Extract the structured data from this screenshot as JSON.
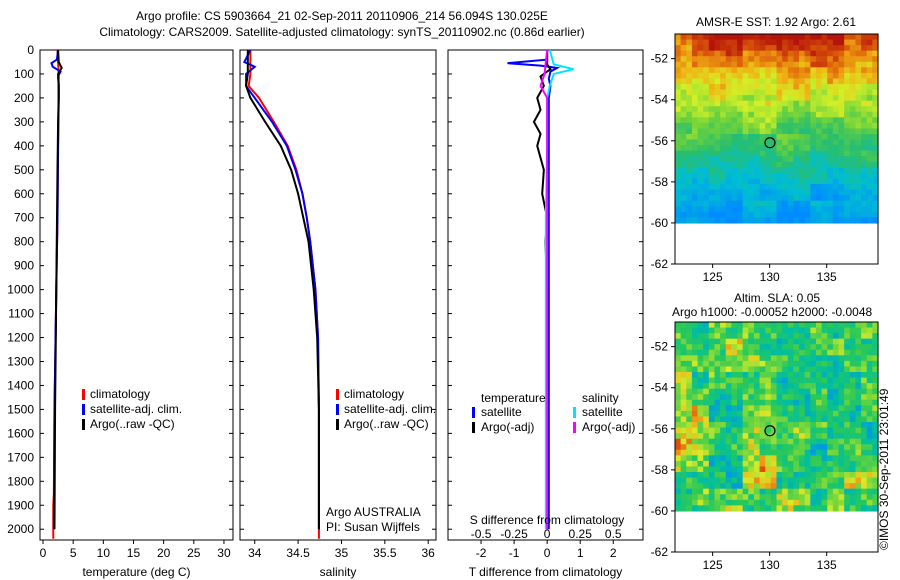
{
  "title_line1": "Argo profile: CS 5903664_21 02-Sep-2011 20110906_214 56.094S 130.025E",
  "title_line2": "Climatology: CARS2009. Satellite-adjusted climatology: synTS_20110902.nc (0.86d earlier)",
  "colors": {
    "climatology": "#ff0000",
    "satellite": "#0000ff",
    "argo": "#000000",
    "sal_satellite": "#00e5ff",
    "sal_argo": "#ff00ff"
  },
  "chart_data": [
    {
      "type": "line",
      "name": "temperature",
      "xlabel": "temperature (deg C)",
      "xlim": [
        -0.5,
        31.5
      ],
      "ylim": [
        2045,
        0
      ],
      "xticks": [
        0,
        5,
        10,
        15,
        20,
        25,
        30
      ],
      "yticks": [
        0,
        100,
        200,
        300,
        400,
        500,
        600,
        700,
        800,
        900,
        1000,
        1100,
        1200,
        1300,
        1400,
        1500,
        1600,
        1700,
        1800,
        1900,
        2000
      ],
      "legend": [
        "climatology",
        "satellite-adj. clim.",
        "Argo(..raw -QC)"
      ],
      "series": [
        {
          "name": "climatology",
          "depth": [
            0,
            50,
            100,
            200,
            400,
            700,
            1000,
            1500,
            1850,
            1900,
            2040
          ],
          "values": [
            2.4,
            2.5,
            2.6,
            2.6,
            2.5,
            2.4,
            2.2,
            1.9,
            1.8,
            1.7,
            1.7
          ]
        },
        {
          "name": "satellite-adj. clim.",
          "depth": [
            0,
            40,
            55,
            70,
            90,
            110,
            150,
            200,
            400,
            700,
            1000,
            1500,
            2000
          ],
          "values": [
            2.5,
            2.3,
            1.4,
            1.6,
            2.9,
            2.5,
            2.6,
            2.6,
            2.5,
            2.4,
            2.2,
            1.9,
            1.8
          ]
        },
        {
          "name": "Argo(..raw -QC)",
          "depth": [
            0,
            50,
            75,
            100,
            150,
            200,
            300,
            500,
            1000,
            1500,
            2000
          ],
          "values": [
            2.5,
            2.6,
            3.1,
            2.5,
            2.6,
            2.6,
            2.5,
            2.4,
            2.2,
            2.0,
            1.9
          ]
        }
      ]
    },
    {
      "type": "line",
      "name": "salinity",
      "xlabel": "salinity",
      "xlim": [
        33.83,
        36.09
      ],
      "ylim": [
        2045,
        0
      ],
      "xticks": [
        34,
        34.5,
        35,
        35.5,
        36
      ],
      "legend": [
        "climatology",
        "satellite-adj. clim.",
        "Argo(..raw -QC)"
      ],
      "annotation": [
        "Argo AUSTRALIA",
        "PI: Susan Wijffels"
      ],
      "series": [
        {
          "name": "climatology",
          "depth": [
            0,
            100,
            150,
            200,
            300,
            400,
            500,
            600,
            700,
            800,
            1000,
            1200,
            1500,
            2000,
            2040
          ],
          "values": [
            33.95,
            33.95,
            33.93,
            34.05,
            34.22,
            34.38,
            34.48,
            34.55,
            34.6,
            34.64,
            34.7,
            34.73,
            34.74,
            34.74,
            34.74
          ]
        },
        {
          "name": "satellite-adj. clim.",
          "depth": [
            0,
            50,
            70,
            100,
            150,
            200,
            300,
            400,
            500,
            600,
            700,
            800,
            1000,
            1200,
            1500,
            2000
          ],
          "values": [
            33.95,
            33.88,
            34.0,
            33.9,
            33.9,
            34.0,
            34.2,
            34.37,
            34.47,
            34.55,
            34.6,
            34.64,
            34.7,
            34.73,
            34.74,
            34.74
          ]
        },
        {
          "name": "Argo(..raw -QC)",
          "depth": [
            0,
            100,
            150,
            200,
            300,
            400,
            500,
            600,
            700,
            800,
            1000,
            1200,
            1500,
            2000
          ],
          "values": [
            33.92,
            33.92,
            33.9,
            33.95,
            34.12,
            34.3,
            34.42,
            34.5,
            34.56,
            34.62,
            34.68,
            34.72,
            34.74,
            34.74
          ]
        }
      ]
    },
    {
      "type": "line",
      "name": "difference",
      "xlabel": "T difference from climatology",
      "x2label": "S difference from climatology",
      "xlim": [
        -3,
        2.9
      ],
      "ylim": [
        2045,
        0
      ],
      "xticks": [
        -2,
        -1,
        0,
        1,
        2
      ],
      "x2ticks": [
        -0.5,
        -0.25,
        0,
        0.25,
        0.5
      ],
      "legend_headers": [
        "temperature",
        "salinity"
      ],
      "legend": [
        "satellite",
        "Argo(-adj)",
        "satellite",
        "Argo(-adj)"
      ],
      "series": [
        {
          "name": "T satellite",
          "depth": [
            0,
            40,
            55,
            65,
            75,
            90,
            120,
            150,
            200,
            300,
            500,
            1000,
            1500,
            2000
          ],
          "values": [
            0,
            0,
            -1.2,
            -0.2,
            0.3,
            0.1,
            0.05,
            0.1,
            0.05,
            0.05,
            0.05,
            0.05,
            0.05,
            0.05
          ]
        },
        {
          "name": "T Argo(-adj)",
          "depth": [
            0,
            60,
            80,
            110,
            150,
            200,
            250,
            300,
            350,
            400,
            500,
            600,
            700,
            800,
            1000,
            1500,
            2000
          ],
          "values": [
            0,
            0,
            0.1,
            -0.2,
            -0.1,
            -0.3,
            -0.2,
            -0.4,
            -0.2,
            -0.3,
            -0.1,
            -0.15,
            0,
            -0.05,
            0,
            0,
            0
          ]
        },
        {
          "name": "S satellite",
          "depth": [
            0,
            60,
            80,
            100,
            150,
            200,
            400,
            700,
            1000,
            1500,
            2000
          ],
          "values": [
            0.02,
            0.05,
            0.2,
            0.05,
            0.02,
            0.0,
            0.0,
            -0.01,
            -0.01,
            -0.01,
            -0.01
          ]
        },
        {
          "name": "S Argo(-adj)",
          "depth": [
            0,
            100,
            150,
            200,
            300,
            500,
            1000,
            1500,
            2000
          ],
          "values": [
            0,
            -0.02,
            -0.05,
            0.0,
            0.0,
            0.0,
            0.0,
            0.0,
            0.0
          ]
        }
      ]
    },
    {
      "type": "heatmap",
      "name": "sst_map",
      "title": "AMSR-E SST: 1.92 Argo: 2.61",
      "xlim": [
        121.7,
        139.5
      ],
      "ylim": [
        -62,
        -50.8
      ],
      "xticks": [
        125,
        130,
        135
      ],
      "yticks": [
        -52,
        -54,
        -56,
        -58,
        -60,
        -62
      ],
      "marker": {
        "lon": 130.025,
        "lat": -56.094
      }
    },
    {
      "type": "heatmap",
      "name": "sla_map",
      "title": "Altim. SLA: 0.05",
      "subtitle": "Argo h1000: -0.00052 h2000: -0.0048",
      "xlim": [
        121.7,
        139.5
      ],
      "ylim": [
        -62,
        -50.8
      ],
      "xticks": [
        125,
        130,
        135
      ],
      "yticks": [
        -52,
        -54,
        -56,
        -58,
        -60,
        -62
      ],
      "marker": {
        "lon": 130.025,
        "lat": -56.094
      }
    }
  ],
  "stamp": "©IMOS 30-Sep-2011 23:01:49"
}
